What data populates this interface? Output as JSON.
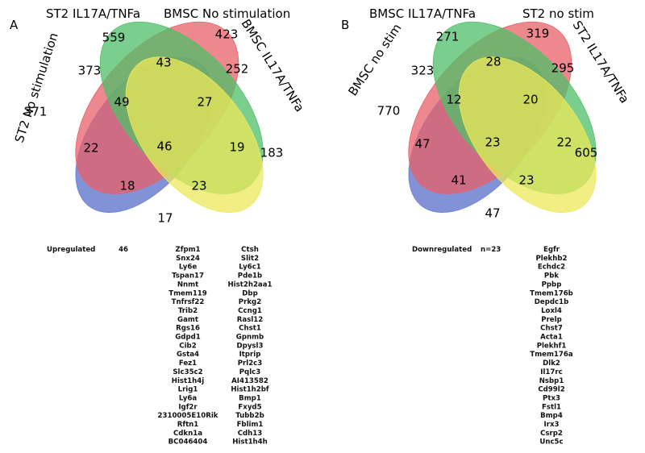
{
  "colors": {
    "blue": "#6b7fd0",
    "red": "#e8606a",
    "green": "#4fbf68",
    "yellow": "#ece85a"
  },
  "panel_a": {
    "letter": "A",
    "set_labels": [
      "ST2 No stimulation",
      "ST2 IL17A/TNFa",
      "BMSC No stimulation",
      "BMSC IL17A/TNFa"
    ],
    "region_counts": [
      "371",
      "559",
      "423",
      "183",
      "373",
      "43",
      "252",
      "49",
      "27",
      "22",
      "46",
      "19",
      "18",
      "23",
      "17"
    ],
    "list_label": "Upregulated",
    "list_count": "46",
    "genes_col1": [
      "Zfpm1",
      "Snx24",
      "Ly6e",
      "Tspan17",
      "Nnmt",
      "Tmem119",
      "Tnfrsf22",
      "Trib2",
      "Gamt",
      "Rgs16",
      "Gdpd1",
      "Cib2",
      "Gsta4",
      "Fez1",
      "Slc35c2",
      "Hist1h4j",
      "Lrig1",
      "Ly6a",
      "Igf2r",
      "2310005E10Rik",
      "Rftn1",
      "Cdkn1a",
      "BC046404"
    ],
    "genes_col2": [
      "Ctsh",
      "Slit2",
      "Ly6c1",
      "Pde1b",
      "Hist2h2aa1",
      "Dbp",
      "Prkg2",
      "Ccng1",
      "Rasl12",
      "Chst1",
      "Gpnmb",
      "Dpysl3",
      "Itprip",
      "Prl2c3",
      "Pqlc3",
      "AI413582",
      "Hist1h2bf",
      "Bmp1",
      "Fxyd5",
      "Tubb2b",
      "Fblim1",
      "Cdh13",
      "Hist1h4h"
    ]
  },
  "panel_b": {
    "letter": "B",
    "set_labels": [
      "BMSC no stim",
      "BMSC IL17A/TNFa",
      "ST2 no stim",
      "ST2 IL17A/TNFa"
    ],
    "region_counts": [
      "770",
      "271",
      "319",
      "605",
      "323",
      "28",
      "295",
      "12",
      "20",
      "47",
      "23",
      "22",
      "41",
      "23",
      "47"
    ],
    "list_label": "Downregulated",
    "list_count": "n=23",
    "genes": [
      "Egfr",
      "Plekhb2",
      "Echdc2",
      "Pbk",
      "Ppbp",
      "Tmem176b",
      "Depdc1b",
      "Loxl4",
      "Prelp",
      "Chst7",
      "Acta1",
      "Plekhf1",
      "Tmem176a",
      "Dlk2",
      "Il17rc",
      "Nsbp1",
      "Cd99l2",
      "Ptx3",
      "Fstl1",
      "Bmp4",
      "Irx3",
      "Csrp2",
      "Unc5c"
    ]
  }
}
